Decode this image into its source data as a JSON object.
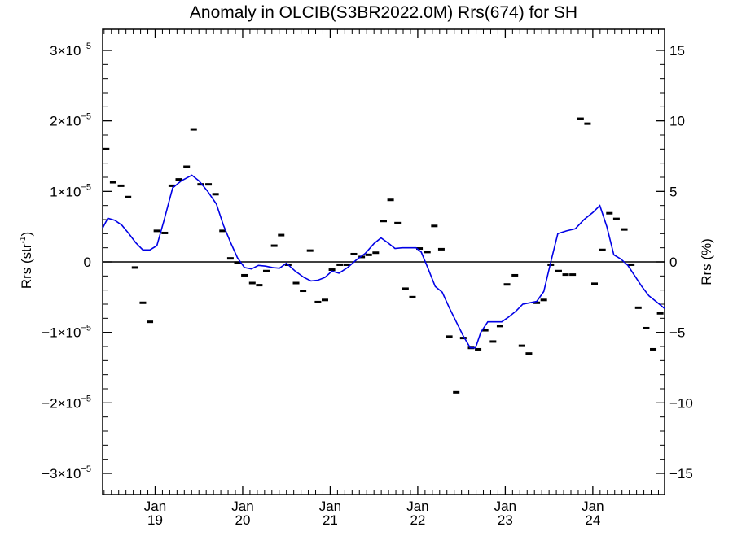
{
  "chart_data": {
    "type": "scatter",
    "title": "Anomaly in OLCIB(S3BR2022.0M) Rrs(674) for SH",
    "ylabel_left": "Rrs (str",
    "ylabel_left_exp": "-1",
    "ylabel_left_close": ")",
    "ylabel_right": "Rrs (%)",
    "left_axis": {
      "ylim": [
        -3.3e-05,
        3.3e-05
      ],
      "ticks": [
        {
          "value": 3e-05,
          "mant": "3×10",
          "exp": "−5"
        },
        {
          "value": 2e-05,
          "mant": "2×10",
          "exp": "−5"
        },
        {
          "value": 1e-05,
          "mant": "1×10",
          "exp": "−5"
        },
        {
          "value": 0,
          "mant": "0",
          "exp": ""
        },
        {
          "value": -1e-05,
          "mant": "−1×10",
          "exp": "−5"
        },
        {
          "value": -2e-05,
          "mant": "−2×10",
          "exp": "−5"
        },
        {
          "value": -3e-05,
          "mant": "−3×10",
          "exp": "−5"
        }
      ]
    },
    "right_axis": {
      "ylim": [
        -16.5,
        16.5
      ],
      "ticks": [
        {
          "value": 15,
          "label": "15"
        },
        {
          "value": 10,
          "label": "10"
        },
        {
          "value": 5,
          "label": "5"
        },
        {
          "value": 0,
          "label": "0"
        },
        {
          "value": -5,
          "label": "−5"
        },
        {
          "value": -10,
          "label": "−10"
        },
        {
          "value": -15,
          "label": "−15"
        }
      ]
    },
    "xlim": [
      2018.4,
      2024.82
    ],
    "x_ticks": [
      {
        "value": 2019.0,
        "line1": "Jan",
        "line2": "19"
      },
      {
        "value": 2020.0,
        "line1": "Jan",
        "line2": "20"
      },
      {
        "value": 2021.0,
        "line1": "Jan",
        "line2": "21"
      },
      {
        "value": 2022.0,
        "line1": "Jan",
        "line2": "22"
      },
      {
        "value": 2023.0,
        "line1": "Jan",
        "line2": "23"
      },
      {
        "value": 2024.0,
        "line1": "Jan",
        "line2": "24"
      }
    ],
    "zero_line": true,
    "series": [
      {
        "kind": "markers",
        "color": "#000000",
        "x": [
          2018.44,
          2018.52,
          2018.61,
          2018.69,
          2018.77,
          2018.86,
          2018.94,
          2019.02,
          2019.11,
          2019.19,
          2019.27,
          2019.36,
          2019.44,
          2019.52,
          2019.61,
          2019.69,
          2019.77,
          2019.86,
          2019.94,
          2020.02,
          2020.11,
          2020.19,
          2020.27,
          2020.36,
          2020.44,
          2020.52,
          2020.61,
          2020.69,
          2020.77,
          2020.86,
          2020.94,
          2021.02,
          2021.11,
          2021.19,
          2021.27,
          2021.36,
          2021.44,
          2021.52,
          2021.61,
          2021.69,
          2021.77,
          2021.86,
          2021.94,
          2022.02,
          2022.11,
          2022.19,
          2022.27,
          2022.36,
          2022.44,
          2022.52,
          2022.61,
          2022.69,
          2022.77,
          2022.86,
          2022.94,
          2023.02,
          2023.11,
          2023.19,
          2023.27,
          2023.36,
          2023.44,
          2023.52,
          2023.61,
          2023.69,
          2023.77,
          2023.86,
          2023.94,
          2024.02,
          2024.11,
          2024.19,
          2024.27,
          2024.36,
          2024.44,
          2024.52,
          2024.61,
          2024.69,
          2024.77
        ],
        "y": [
          1.6e-05,
          1.13e-05,
          1.08e-05,
          9.2e-06,
          -8e-07,
          -5.8e-06,
          -8.5e-06,
          4.4e-06,
          4.1e-06,
          1.08e-05,
          1.17e-05,
          1.35e-05,
          1.88e-05,
          1.1e-05,
          1.1e-05,
          9.6e-06,
          4.4e-06,
          5e-07,
          -1e-07,
          -1.9e-06,
          -3e-06,
          -3.3e-06,
          -1.3e-06,
          2.3e-06,
          3.8e-06,
          -4e-07,
          -3e-06,
          -4.1e-06,
          1.6e-06,
          -5.7e-06,
          -5.4e-06,
          -1.1e-06,
          -4e-07,
          -4e-07,
          1.1e-06,
          7e-07,
          1e-06,
          1.3e-06,
          5.8e-06,
          8.8e-06,
          5.5e-06,
          -3.8e-06,
          -5e-06,
          1.9e-06,
          1.4e-06,
          5.1e-06,
          1.8e-06,
          -1.06e-05,
          -1.85e-05,
          -1.08e-05,
          -1.22e-05,
          -1.24e-05,
          -9.7e-06,
          -1.13e-05,
          -9.1e-06,
          -3.2e-06,
          -1.9e-06,
          -1.19e-05,
          -1.3e-05,
          -5.8e-06,
          -5.4e-06,
          -4e-07,
          -1.3e-06,
          -1.8e-06,
          -1.8e-06,
          2.03e-05,
          1.96e-05,
          -3.1e-06,
          1.7e-06,
          6.9e-06,
          6.1e-06,
          4.6e-06,
          -4e-07,
          -6.5e-06,
          -9.4e-06,
          -1.24e-05,
          -7.3e-06
        ]
      },
      {
        "kind": "line",
        "color": "#0000e6",
        "x": [
          2018.4,
          2018.46,
          2018.54,
          2018.62,
          2018.7,
          2018.78,
          2018.86,
          2018.94,
          2019.02,
          2019.1,
          2019.2,
          2019.3,
          2019.42,
          2019.5,
          2019.6,
          2019.7,
          2019.78,
          2019.86,
          2019.94,
          2020.02,
          2020.1,
          2020.18,
          2020.26,
          2020.34,
          2020.42,
          2020.5,
          2020.6,
          2020.7,
          2020.78,
          2020.86,
          2020.94,
          2021.02,
          2021.1,
          2021.2,
          2021.3,
          2021.4,
          2021.5,
          2021.58,
          2021.66,
          2021.74,
          2021.82,
          2021.9,
          2021.98,
          2022.04,
          2022.12,
          2022.2,
          2022.28,
          2022.36,
          2022.44,
          2022.52,
          2022.6,
          2022.66,
          2022.72,
          2022.8,
          2022.86,
          2022.96,
          2023.04,
          2023.12,
          2023.2,
          2023.28,
          2023.36,
          2023.44,
          2023.52,
          2023.6,
          2023.7,
          2023.8,
          2023.9,
          2024.0,
          2024.08,
          2024.16,
          2024.24,
          2024.32,
          2024.4,
          2024.48,
          2024.56,
          2024.64,
          2024.72,
          2024.82
        ],
        "y": [
          4.8e-06,
          6.2e-06,
          5.9e-06,
          5.2e-06,
          4e-06,
          2.7e-06,
          1.7e-06,
          1.7e-06,
          2.3e-06,
          5.8e-06,
          1.05e-05,
          1.15e-05,
          1.23e-05,
          1.15e-05,
          1e-05,
          8.2e-06,
          5.2e-06,
          2.8e-06,
          6e-07,
          -8e-07,
          -1e-06,
          -5e-07,
          -6e-07,
          -8e-07,
          -9e-07,
          -2e-07,
          -1.3e-06,
          -2.2e-06,
          -2.7e-06,
          -2.6e-06,
          -2.2e-06,
          -1.3e-06,
          -1.6e-06,
          -8e-07,
          3e-07,
          1.2e-06,
          2.6e-06,
          3.4e-06,
          2.7e-06,
          1.9e-06,
          2e-06,
          2e-06,
          2e-06,
          1.4e-06,
          -1e-06,
          -3.5e-06,
          -4.3e-06,
          -6.5e-06,
          -8.5e-06,
          -1.05e-05,
          -1.22e-05,
          -1.22e-05,
          -1e-05,
          -8.5e-06,
          -8.5e-06,
          -8.5e-06,
          -7.8e-06,
          -7e-06,
          -6e-06,
          -5.8e-06,
          -5.6e-06,
          -4.2e-06,
          0.0,
          4e-06,
          4.4e-06,
          4.7e-06,
          6e-06,
          7e-06,
          8e-06,
          5e-06,
          1e-06,
          4e-07,
          -5e-07,
          -2e-06,
          -3.5e-06,
          -4.8e-06,
          -5.6e-06,
          -6.6e-06
        ]
      }
    ]
  }
}
